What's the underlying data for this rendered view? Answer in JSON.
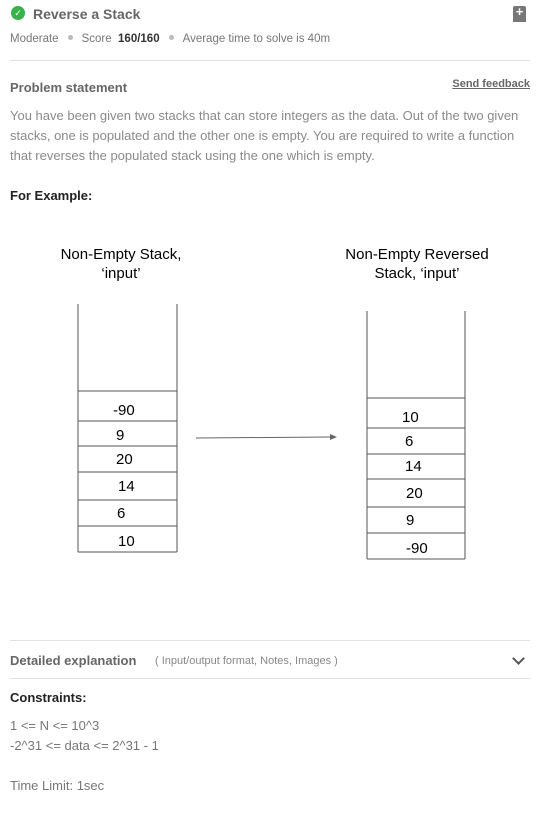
{
  "problem": {
    "title": "Reverse a Stack",
    "difficulty": "Moderate",
    "score_label": "Score",
    "score_value": "160/160",
    "avg_time": "Average time to solve is 40m"
  },
  "statement": {
    "heading": "Problem statement",
    "feedback_link": "Send feedback",
    "text": "You have been given two stacks that can store integers as the data. Out of the two given stacks, one is populated and the other one is empty. You are required to write a function that reverses the populated stack using the one which is empty.",
    "example_label": "For Example:"
  },
  "diagram": {
    "left_title_line1": "Non-Empty Stack,",
    "left_title_line2": "‘input’",
    "right_title_line1": "Non-Empty Reversed",
    "right_title_line2": "Stack, ‘input’",
    "left_values": [
      "-90",
      "9",
      "20",
      "14",
      "6",
      "10"
    ],
    "right_values": [
      "10",
      "6",
      "14",
      "20",
      "9",
      "-90"
    ]
  },
  "details": {
    "heading": "Detailed explanation",
    "subheading": "( Input/output format, Notes, Images )"
  },
  "constraints": {
    "heading": "Constraints:",
    "line1": "1 <= N <= 10^3",
    "line2": "-2^31 <= data <= 2^31 - 1",
    "time_limit": "Time Limit: 1sec"
  },
  "icons": {
    "status": "check-circle-icon",
    "bookmark": "bookmark-add-icon",
    "expand": "chevron-down-icon",
    "accent_color": "#37b34a"
  }
}
